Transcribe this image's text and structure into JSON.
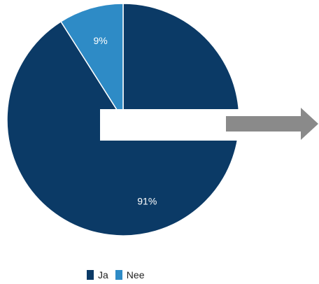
{
  "chart_data": {
    "type": "pie",
    "categories": [
      "Ja",
      "Nee"
    ],
    "values": [
      91,
      9
    ],
    "labels": [
      "91%",
      "9%"
    ],
    "colors": [
      "#0b3a66",
      "#2e8bc6"
    ],
    "legend_position": "bottom-left",
    "start_angle_deg": 0,
    "direction": "clockwise"
  },
  "overlay": {
    "white_box_color": "#ffffff",
    "arrow_color": "#8a8a8a"
  },
  "legend": {
    "items": [
      {
        "label": "Ja",
        "color": "#0b3a66"
      },
      {
        "label": "Nee",
        "color": "#2e8bc6"
      }
    ]
  }
}
